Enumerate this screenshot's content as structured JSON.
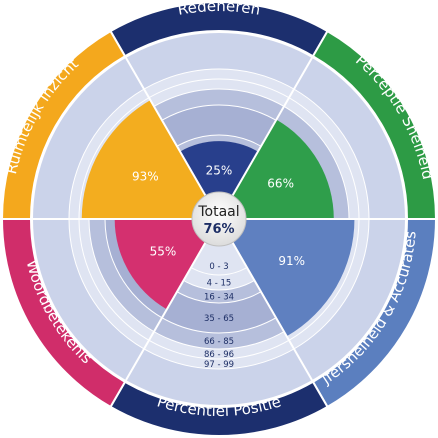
{
  "chart_data": {
    "type": "radial-bar",
    "center": {
      "title": "Totaal",
      "value": "76%"
    },
    "segments": [
      {
        "name": "Redeneren",
        "value": 25,
        "label": "25%",
        "color": "#283f8c",
        "ring_color": "#1c2f6e"
      },
      {
        "name": "Perceptie Snelheid",
        "value": 66,
        "label": "66%",
        "color": "#2f9e4b",
        "ring_color": "#2d9b45"
      },
      {
        "name": "Cijfersnelheid & Accuratesse",
        "value": 91,
        "label": "91%",
        "color": "#5f80c0",
        "ring_color": "#5b7fbf"
      },
      {
        "name": "Percentiel Positie",
        "value": null,
        "label": "",
        "color": null,
        "ring_color": "#1c2f6e"
      },
      {
        "name": "Woordbetekenis",
        "value": 55,
        "label": "55%",
        "color": "#d4306f",
        "ring_color": "#d02d6a"
      },
      {
        "name": "Ruimtelijk Inzicht",
        "value": 93,
        "label": "93%",
        "color": "#f3ad1f",
        "ring_color": "#f4a81d"
      }
    ],
    "percentile_bands": [
      "0 - 3",
      "4 - 15",
      "16 - 34",
      "35 - 65",
      "66 - 85",
      "86 - 96",
      "97 - 99"
    ],
    "band_thresholds": [
      3,
      15,
      34,
      65,
      85,
      96,
      99
    ],
    "colors": {
      "background_disk": "#cbd3ea",
      "band_light": "#dfe4f2",
      "band_mid": "#b6bfdc",
      "band_dark": "#a6b0d3",
      "grid": "#ffffff"
    }
  }
}
